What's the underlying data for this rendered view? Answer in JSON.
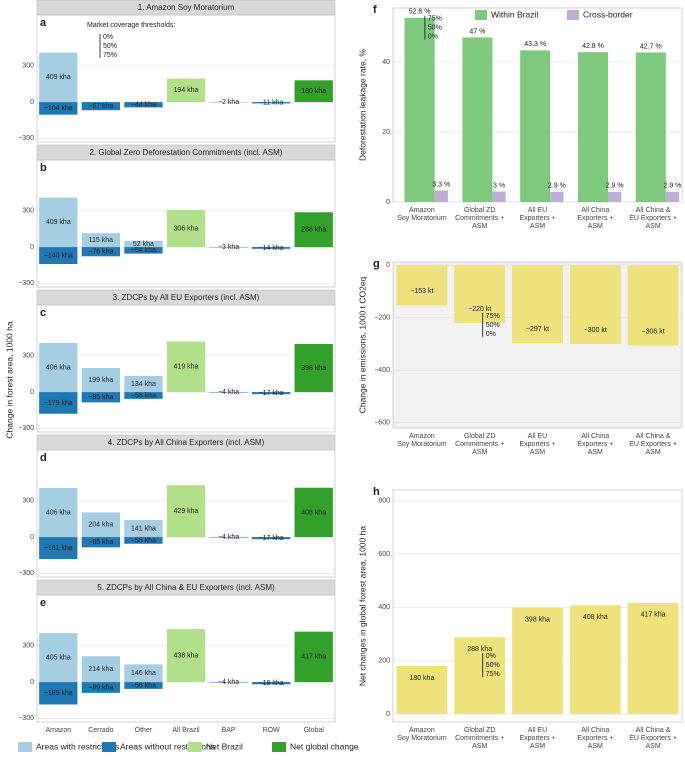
{
  "chart_data": [
    {
      "type": "bar",
      "title": "1. Amazon Soy Moratorium",
      "panel": "a",
      "annotation": {
        "title": "Market coverage thresholds:",
        "labels": [
          "0%",
          "50%",
          "75%"
        ]
      },
      "ylim": [
        -330,
        720
      ],
      "yticks": [
        {
          "value": -300,
          "label": "−300"
        },
        0,
        300
      ],
      "grid": true,
      "series": [
        {
          "color": "#a6cee3",
          "values": [
            409,
            null,
            null,
            null,
            null,
            null,
            null
          ],
          "value_labels": [
            "409 kha",
            null,
            null,
            null,
            null,
            null,
            null
          ]
        },
        {
          "color": "#1f78b4",
          "values": [
            -104,
            -67,
            -44,
            null,
            -2,
            -11,
            null
          ],
          "value_labels": [
            "−104 kha",
            "−67 kha",
            "−44 kha",
            null,
            "−2 kha",
            "−11 kha",
            null
          ]
        },
        {
          "color": "#b2df8a",
          "values": [
            null,
            null,
            null,
            194,
            null,
            null,
            null
          ],
          "value_labels": [
            null,
            null,
            null,
            "194 kha",
            null,
            null,
            null
          ]
        },
        {
          "color": "#33a02c",
          "values": [
            null,
            null,
            null,
            null,
            null,
            null,
            180
          ],
          "value_labels": [
            null,
            null,
            null,
            null,
            null,
            null,
            "180 kha"
          ]
        }
      ]
    },
    {
      "type": "bar",
      "title": "2. Global Zero Deforestation Commitments (incl. ASM)",
      "panel": "b",
      "ylim": [
        -330,
        720
      ],
      "yticks": [
        {
          "value": -300,
          "label": "−300"
        },
        0,
        300
      ],
      "grid": true,
      "series": [
        {
          "color": "#a6cee3",
          "values": [
            409,
            115,
            52,
            null,
            null,
            null,
            null
          ],
          "value_labels": [
            "409 kha",
            "115 kha",
            "52 kha",
            null,
            null,
            null,
            null
          ]
        },
        {
          "color": "#1f78b4",
          "values": [
            -140,
            -76,
            -54,
            null,
            -3,
            -14,
            null
          ],
          "value_labels": [
            "−140 kha",
            "−76 kha",
            "−54 kha",
            null,
            "−3 kha",
            "−14 kha",
            null
          ]
        },
        {
          "color": "#b2df8a",
          "values": [
            null,
            null,
            null,
            306,
            null,
            null,
            null
          ],
          "value_labels": [
            null,
            null,
            null,
            "306 kha",
            null,
            null,
            null
          ]
        },
        {
          "color": "#33a02c",
          "values": [
            null,
            null,
            null,
            null,
            null,
            null,
            288
          ],
          "value_labels": [
            null,
            null,
            null,
            null,
            null,
            null,
            "288 kha"
          ]
        }
      ]
    },
    {
      "type": "bar",
      "title": "3. ZDCPs by All EU Exporters (incl. ASM)",
      "panel": "c",
      "ylabel": "Change in forest area, 1000 ha",
      "ylim": [
        -330,
        720
      ],
      "yticks": [
        {
          "value": -300,
          "label": "−300"
        },
        0,
        300
      ],
      "grid": true,
      "series": [
        {
          "color": "#a6cee3",
          "values": [
            406,
            199,
            134,
            null,
            null,
            null,
            null
          ],
          "value_labels": [
            "406 kha",
            "199 kha",
            "134 kha",
            null,
            null,
            null,
            null
          ]
        },
        {
          "color": "#1f78b4",
          "values": [
            -179,
            -85,
            -56,
            null,
            -4,
            -17,
            null
          ],
          "value_labels": [
            "−179 kha",
            "−85 kha",
            "−56 kha",
            null,
            "−4 kha",
            "−17 kha",
            null
          ]
        },
        {
          "color": "#b2df8a",
          "values": [
            null,
            null,
            null,
            419,
            null,
            null,
            null
          ],
          "value_labels": [
            null,
            null,
            null,
            "419 kha",
            null,
            null,
            null
          ]
        },
        {
          "color": "#33a02c",
          "values": [
            null,
            null,
            null,
            null,
            null,
            null,
            398
          ],
          "value_labels": [
            null,
            null,
            null,
            null,
            null,
            null,
            "398 kha"
          ]
        }
      ]
    },
    {
      "type": "bar",
      "title": "4. ZDCPs by All China Exporters (incl. ASM)",
      "panel": "d",
      "ylim": [
        -330,
        720
      ],
      "yticks": [
        {
          "value": -300,
          "label": "−300"
        },
        0,
        300
      ],
      "grid": true,
      "series": [
        {
          "color": "#a6cee3",
          "values": [
            406,
            204,
            141,
            null,
            null,
            null,
            null
          ],
          "value_labels": [
            "406 kha",
            "204 kha",
            "141 kha",
            null,
            null,
            null,
            null
          ]
        },
        {
          "color": "#1f78b4",
          "values": [
            -181,
            -85,
            -55,
            null,
            -4,
            -17,
            null
          ],
          "value_labels": [
            "−181 kha",
            "−85 kha",
            "−55 kha",
            null,
            "−4 kha",
            "−17 kha",
            null
          ]
        },
        {
          "color": "#b2df8a",
          "values": [
            null,
            null,
            null,
            429,
            null,
            null,
            null
          ],
          "value_labels": [
            null,
            null,
            null,
            "429 kha",
            null,
            null,
            null
          ]
        },
        {
          "color": "#33a02c",
          "values": [
            null,
            null,
            null,
            null,
            null,
            null,
            408
          ],
          "value_labels": [
            null,
            null,
            null,
            null,
            null,
            null,
            "408 kha"
          ]
        }
      ]
    },
    {
      "type": "bar",
      "title": "5. ZDCPs by All China & EU Exporters (incl. ASM)",
      "panel": "e",
      "categories": [
        "Amazon",
        "Cerrado",
        "Other",
        "All Brazil",
        "BAP",
        "ROW",
        "Global"
      ],
      "ylim": [
        -330,
        720
      ],
      "yticks": [
        {
          "value": -300,
          "label": "−300"
        },
        0,
        300
      ],
      "grid": true,
      "series": [
        {
          "name": "Areas with restrictions",
          "color": "#a6cee3",
          "values": [
            405,
            214,
            146,
            null,
            null,
            null,
            null
          ],
          "value_labels": [
            "405 kha",
            "214 kha",
            "146 kha",
            null,
            null,
            null,
            null
          ]
        },
        {
          "name": "Areas without restrictions",
          "color": "#1f78b4",
          "values": [
            -185,
            -89,
            -56,
            null,
            -4,
            -18,
            null
          ],
          "value_labels": [
            "−185 kha",
            "−89 kha",
            "−56 kha",
            null,
            "−4 kha",
            "−18 kha",
            null
          ]
        },
        {
          "name": "Net Brazil",
          "color": "#b2df8a",
          "values": [
            null,
            null,
            null,
            438,
            null,
            null,
            null
          ],
          "value_labels": [
            null,
            null,
            null,
            "438 kha",
            null,
            null,
            null
          ]
        },
        {
          "name": "Net global change",
          "color": "#33a02c",
          "values": [
            null,
            null,
            null,
            null,
            null,
            null,
            417
          ],
          "value_labels": [
            null,
            null,
            null,
            null,
            null,
            null,
            "417 kha"
          ]
        }
      ]
    },
    {
      "type": "grouped_bar",
      "panel": "f",
      "ylabel": "Deforestation leakage rate, %",
      "categories": [
        "Amazon\nSoy Moratorium",
        "Global ZD\nCommitments +\nASM",
        "All EU\nExporters +\nASM",
        "All China\nExporters +\nASM",
        "All China &\nEU Exporters +\nASM"
      ],
      "annotation": {
        "labels": [
          "75%",
          "50%",
          "0%"
        ]
      },
      "ylim": [
        0,
        55.4
      ],
      "yticks": [
        0,
        20,
        40
      ],
      "grid": true,
      "series": [
        {
          "name": "Within Brazil",
          "color": "#7fc97f",
          "values": [
            52.6,
            47,
            43.3,
            42.8,
            42.7
          ],
          "value_labels": [
            "52.6 %",
            "47 %",
            "43.3 %",
            "42.8 %",
            "42.7 %"
          ]
        },
        {
          "name": "Cross-border",
          "color": "#beaed4",
          "values": [
            3.3,
            3,
            2.9,
            2.9,
            2.9
          ],
          "value_labels": [
            "3.3 %",
            "3 %",
            "2.9 %",
            "2.9 %",
            "2.9 %"
          ]
        }
      ]
    },
    {
      "type": "bar",
      "panel": "g",
      "ylabel": "Change in emissions, 1000 t CO2eq",
      "categories": [
        "Amazon\nSoy Moratorium",
        "Global ZD\nCommitments +\nASM",
        "All EU\nExporters +\nASM",
        "All China\nExporters +\nASM",
        "All China &\nEU Exporters +\nASM"
      ],
      "annotation": {
        "labels": [
          "75%",
          "50%",
          "0%"
        ]
      },
      "ylim": [
        -620,
        12
      ],
      "yticks": [
        {
          "value": -600,
          "label": "−600"
        },
        {
          "value": -400,
          "label": "−400"
        },
        {
          "value": -200,
          "label": "−200"
        },
        0
      ],
      "grid": true,
      "series": [
        {
          "color": "#ede27c",
          "values": [
            -153,
            -220,
            -297,
            -300,
            -306
          ],
          "value_labels": [
            "−153 kt",
            "−220 kt",
            "−297 kt",
            "−300 kt",
            "−306 kt"
          ]
        }
      ]
    },
    {
      "type": "bar",
      "panel": "h",
      "ylabel": "Net changes in global forest area, 1000 ha",
      "categories": [
        "Amazon\nSoy Moratorium",
        "Global ZD\nCommitments +\nASM",
        "All EU\nExporters +\nASM",
        "All China\nExporters +\nASM",
        "All China &\nEU Exporters +\nASM"
      ],
      "annotation": {
        "labels": [
          "0%",
          "50%",
          "75%"
        ]
      },
      "ylim": [
        -30,
        840
      ],
      "yticks": [
        0,
        200,
        400,
        600,
        800
      ],
      "grid": true,
      "series": [
        {
          "color": "#ede27c",
          "values": [
            180,
            288,
            398,
            408,
            417
          ],
          "value_labels": [
            "180 kha",
            "288 kha",
            "398 kha",
            "408 kha",
            "417 kha"
          ]
        }
      ]
    }
  ]
}
